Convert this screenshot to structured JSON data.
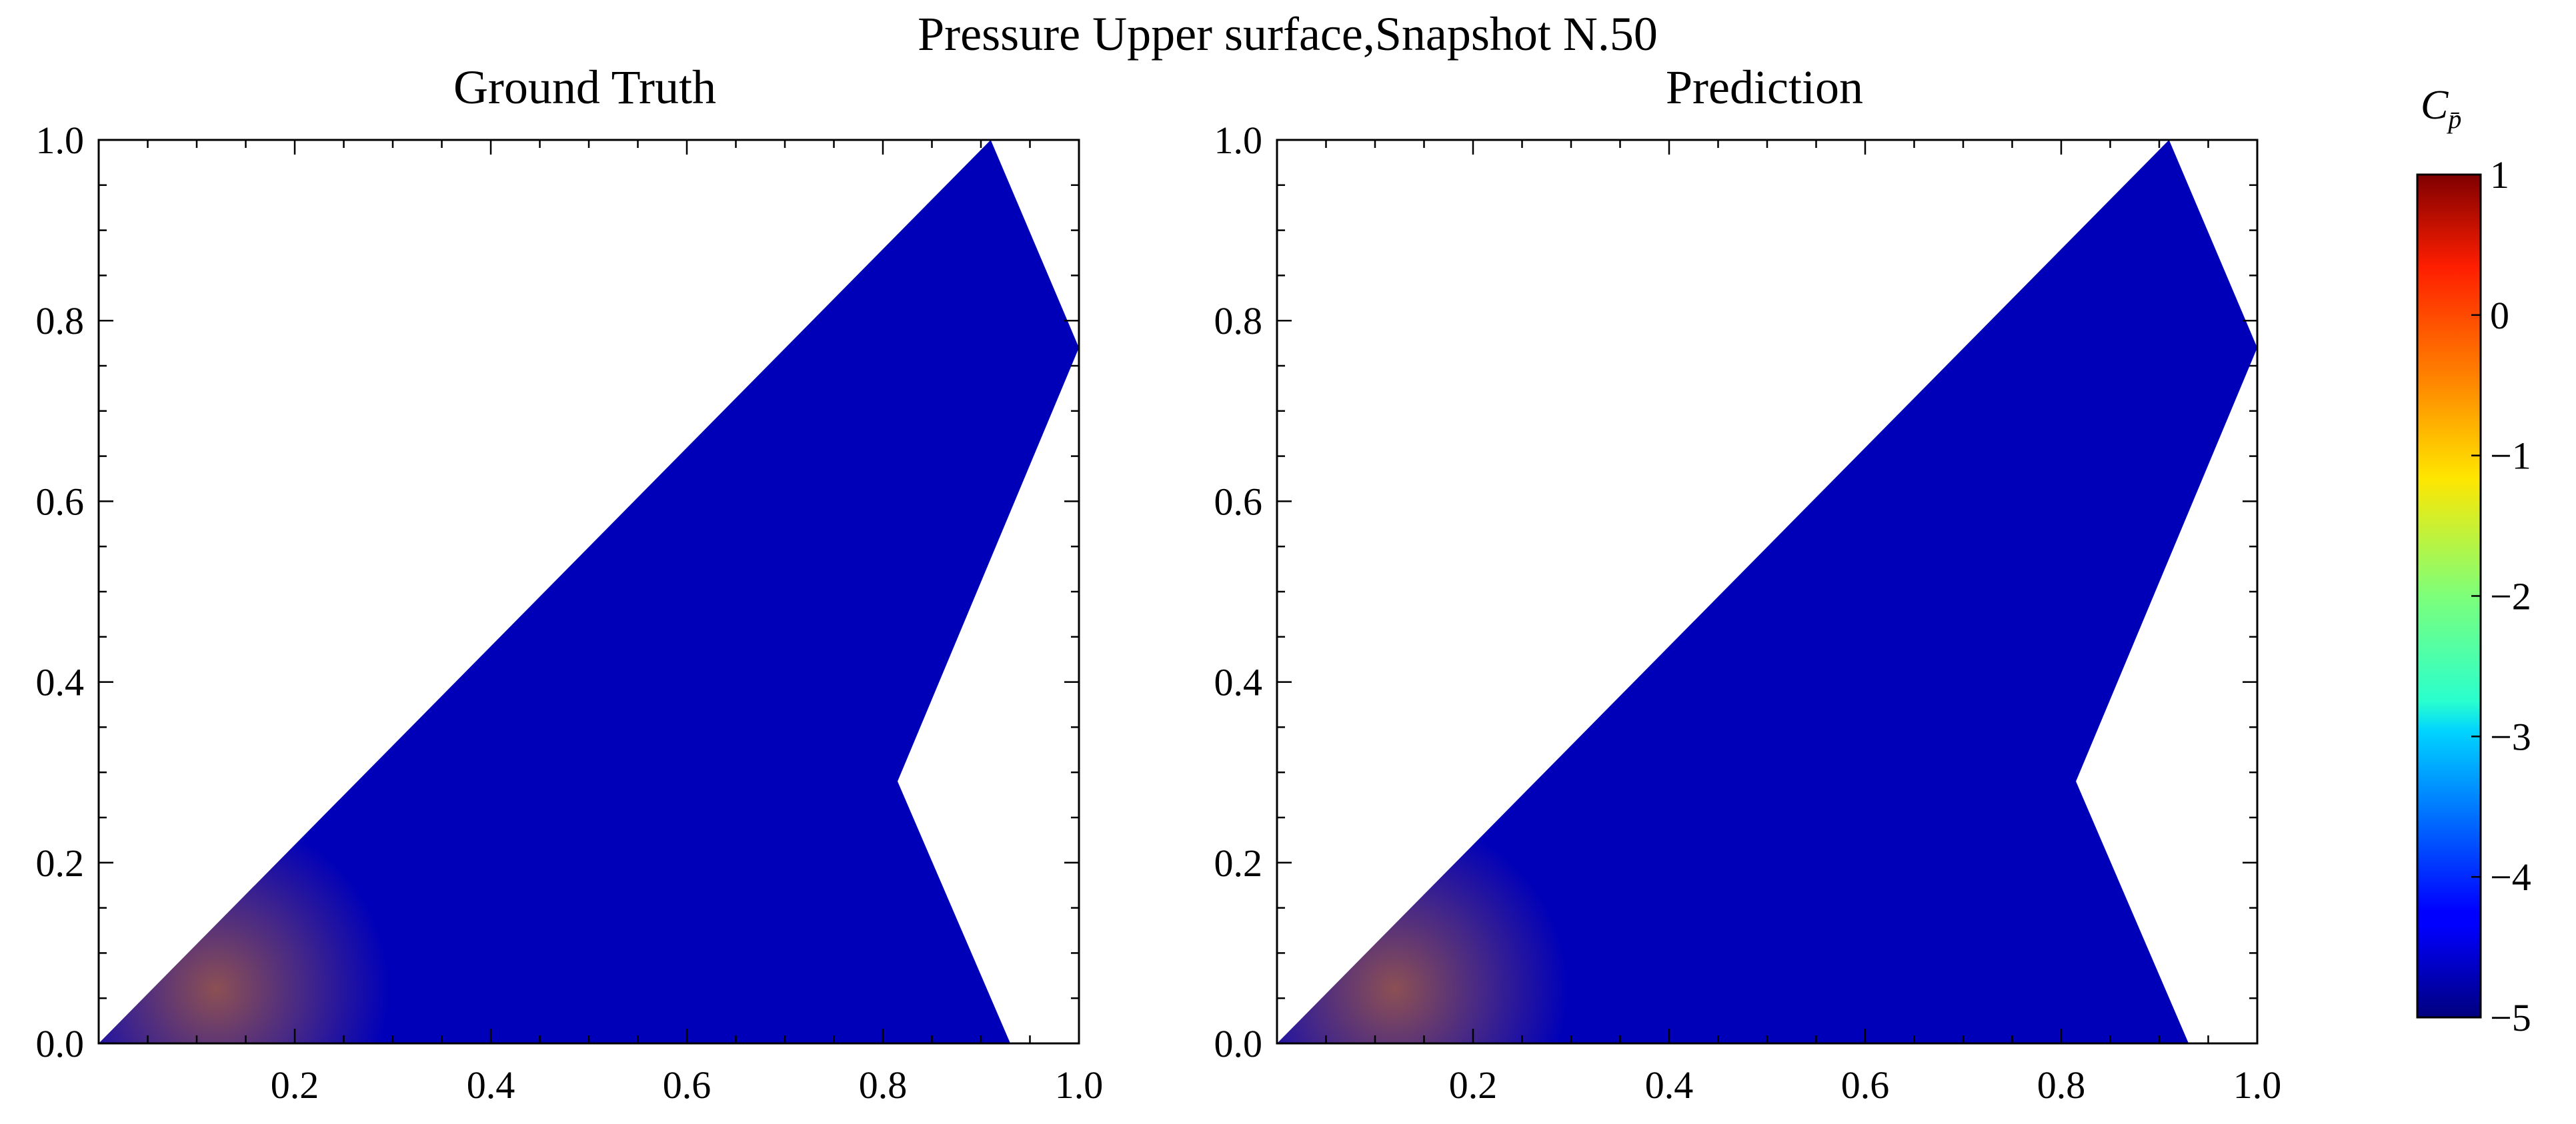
{
  "title": "Pressure Upper surface,Snapshot N.50",
  "colorbar": {
    "label": "C",
    "label_sub": "p̄",
    "vmin": -5,
    "vmax": 1,
    "ticks": [
      1,
      0,
      -1,
      -2,
      -3,
      -4,
      -5
    ],
    "tick_labels": [
      "1",
      "0",
      "−1",
      "−2",
      "−3",
      "−4",
      "−5"
    ],
    "colormap": "jet"
  },
  "chart_data": [
    {
      "type": "heatmap",
      "title": "Ground Truth",
      "xlabel": "",
      "ylabel": "",
      "xlim": [
        0.0,
        1.0
      ],
      "ylim": [
        0.0,
        1.0
      ],
      "x_ticks": [
        "0.2",
        "0.4",
        "0.6",
        "0.8",
        "1.0"
      ],
      "y_ticks": [
        "0.0",
        "0.2",
        "0.4",
        "0.6",
        "0.8",
        "1.0"
      ],
      "domain_outline": [
        [
          0.0,
          0.0
        ],
        [
          0.91,
          1.0
        ],
        [
          1.0,
          0.77
        ],
        [
          0.815,
          0.29
        ],
        [
          0.93,
          0.0
        ]
      ],
      "value_range": [
        -4.7,
        0.3
      ]
    },
    {
      "type": "heatmap",
      "title": "Prediction",
      "xlabel": "",
      "ylabel": "",
      "xlim": [
        0.0,
        1.0
      ],
      "ylim": [
        0.0,
        1.0
      ],
      "x_ticks": [
        "0.2",
        "0.4",
        "0.6",
        "0.8",
        "1.0"
      ],
      "y_ticks": [
        "0.0",
        "0.2",
        "0.4",
        "0.6",
        "0.8",
        "1.0"
      ],
      "domain_outline": [
        [
          0.0,
          0.0
        ],
        [
          0.91,
          1.0
        ],
        [
          1.0,
          0.77
        ],
        [
          0.815,
          0.29
        ],
        [
          0.93,
          0.0
        ]
      ],
      "value_range": [
        -4.7,
        0.3
      ]
    }
  ]
}
